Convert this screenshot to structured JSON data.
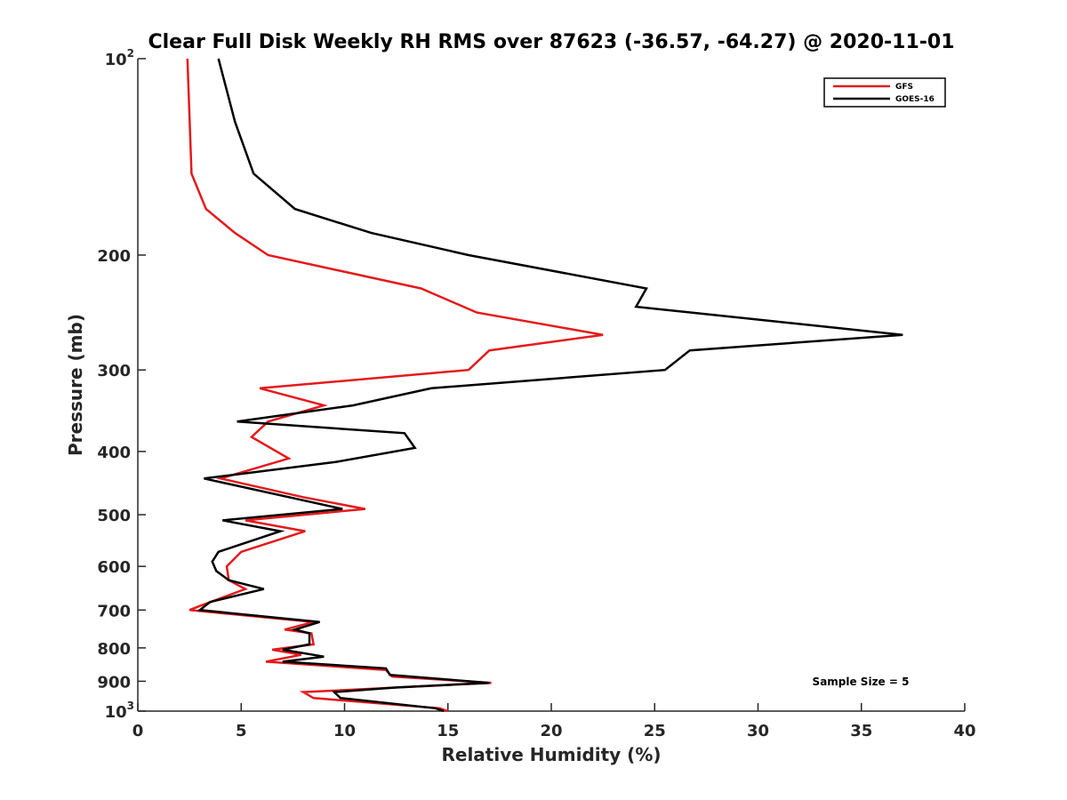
{
  "chart_data": {
    "type": "line",
    "title": "Clear Full Disk Weekly RH RMS over 87623 (-36.57, -64.27) @ 2020-11-01",
    "xlabel": "Relative Humidity (%)",
    "ylabel": "Pressure (mb)",
    "xlim": [
      0,
      40
    ],
    "ylim": [
      100,
      1000
    ],
    "yscale": "log",
    "y_reversed": true,
    "grid": false,
    "legend_position": "top-right",
    "x_ticks": [
      "0",
      "5",
      "10",
      "15",
      "20",
      "25",
      "30",
      "35",
      "40"
    ],
    "y_ticks": [
      {
        "value": 100,
        "base": "10",
        "sup": "2"
      },
      {
        "value": 200,
        "label": "200"
      },
      {
        "value": 300,
        "label": "300"
      },
      {
        "value": 400,
        "label": "400"
      },
      {
        "value": 500,
        "label": "500"
      },
      {
        "value": 600,
        "label": "600"
      },
      {
        "value": 700,
        "label": "700"
      },
      {
        "value": 800,
        "label": "800"
      },
      {
        "value": 900,
        "label": "900"
      },
      {
        "value": 1000,
        "base": "10",
        "sup": "3"
      }
    ],
    "series": [
      {
        "name": "GFS",
        "color": "#e41a1c",
        "points": [
          [
            2.4,
            100
          ],
          [
            2.6,
            150
          ],
          [
            3.3,
            170
          ],
          [
            4.7,
            185
          ],
          [
            6.3,
            200
          ],
          [
            13.7,
            225
          ],
          [
            16.4,
            245
          ],
          [
            22.5,
            265
          ],
          [
            17.0,
            280
          ],
          [
            16.0,
            300
          ],
          [
            5.9,
            320
          ],
          [
            9.0,
            340
          ],
          [
            6.3,
            360
          ],
          [
            5.5,
            380
          ],
          [
            7.3,
            410
          ],
          [
            4.0,
            440
          ],
          [
            8.0,
            470
          ],
          [
            11.0,
            490
          ],
          [
            5.2,
            510
          ],
          [
            8.1,
            530
          ],
          [
            5.0,
            570
          ],
          [
            4.3,
            600
          ],
          [
            4.4,
            630
          ],
          [
            5.2,
            650
          ],
          [
            3.0,
            690
          ],
          [
            2.5,
            700
          ],
          [
            8.5,
            730
          ],
          [
            7.1,
            750
          ],
          [
            8.4,
            760
          ],
          [
            8.5,
            790
          ],
          [
            6.5,
            805
          ],
          [
            7.9,
            820
          ],
          [
            6.2,
            840
          ],
          [
            12.0,
            865
          ],
          [
            12.3,
            885
          ],
          [
            17.1,
            905
          ],
          [
            12.6,
            920
          ],
          [
            8.0,
            935
          ],
          [
            8.5,
            955
          ],
          [
            14.6,
            990
          ],
          [
            15.0,
            1000
          ]
        ]
      },
      {
        "name": "GOES-16",
        "color": "#000000",
        "points": [
          [
            3.9,
            100
          ],
          [
            4.7,
            125
          ],
          [
            5.6,
            150
          ],
          [
            7.6,
            170
          ],
          [
            11.3,
            185
          ],
          [
            16.0,
            200
          ],
          [
            24.6,
            225
          ],
          [
            24.1,
            240
          ],
          [
            37.0,
            265
          ],
          [
            26.7,
            280
          ],
          [
            25.5,
            300
          ],
          [
            14.2,
            320
          ],
          [
            10.4,
            340
          ],
          [
            4.8,
            360
          ],
          [
            12.9,
            375
          ],
          [
            13.4,
            395
          ],
          [
            9.6,
            415
          ],
          [
            3.2,
            440
          ],
          [
            9.9,
            490
          ],
          [
            4.1,
            510
          ],
          [
            6.9,
            530
          ],
          [
            3.9,
            570
          ],
          [
            3.6,
            590
          ],
          [
            3.8,
            610
          ],
          [
            4.4,
            630
          ],
          [
            6.1,
            650
          ],
          [
            3.5,
            680
          ],
          [
            3.0,
            700
          ],
          [
            8.8,
            730
          ],
          [
            7.6,
            750
          ],
          [
            8.3,
            760
          ],
          [
            8.3,
            790
          ],
          [
            7.0,
            805
          ],
          [
            9.0,
            825
          ],
          [
            7.0,
            840
          ],
          [
            12.0,
            860
          ],
          [
            12.2,
            880
          ],
          [
            17.0,
            905
          ],
          [
            12.5,
            920
          ],
          [
            9.5,
            935
          ],
          [
            9.8,
            955
          ],
          [
            14.4,
            990
          ],
          [
            14.8,
            1000
          ]
        ]
      }
    ],
    "annotations": [
      "Sample Size = 5"
    ]
  }
}
